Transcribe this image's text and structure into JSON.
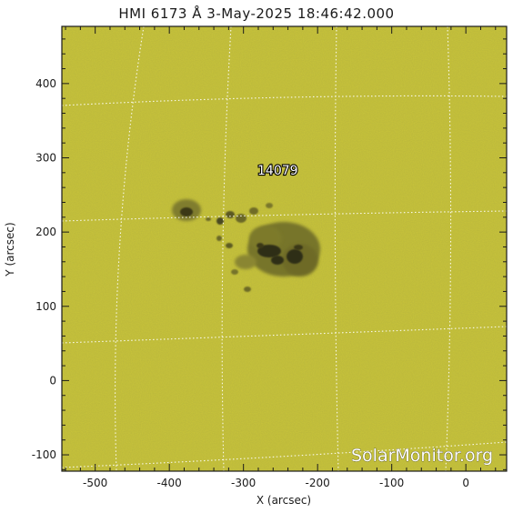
{
  "title": "HMI 6173 Å  3-May-2025 18:46:42.000",
  "region_label": "14079",
  "watermark": "SolarMonitor.org",
  "xlabel": "X (arcsec)",
  "ylabel": "Y (arcsec)",
  "x_ticks": [
    "-500",
    "-400",
    "-300",
    "-200",
    "-100",
    "0"
  ],
  "y_ticks": [
    "-100",
    "0",
    "100",
    "200",
    "300",
    "400"
  ],
  "x_tick_values": [
    -500,
    -400,
    -300,
    -200,
    -100,
    0
  ],
  "y_tick_values": [
    -100,
    0,
    100,
    200,
    300,
    400
  ],
  "xlim": [
    -545,
    55
  ],
  "ylim": [
    -122,
    477
  ],
  "colors": {
    "background": "#c8c43a",
    "umbra": "#2e2d14",
    "penumbra": "#77742a",
    "grid": "#ffffff"
  }
}
